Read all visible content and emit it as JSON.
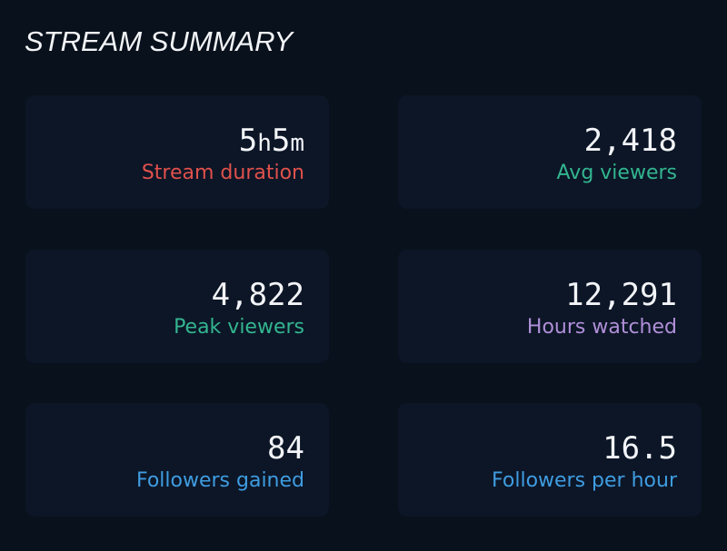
{
  "title": "STREAM SUMMARY",
  "cards": [
    {
      "value_parts": [
        "5",
        "h",
        "5",
        "m"
      ],
      "label": "Stream duration",
      "color": "#e0514c"
    },
    {
      "value": "2,418",
      "label": "Avg viewers",
      "color": "#33b58f"
    },
    {
      "value": "4,822",
      "label": "Peak viewers",
      "color": "#33b58f"
    },
    {
      "value": "12,291",
      "label": "Hours watched",
      "color": "#b08fd8"
    },
    {
      "value": "84",
      "label": "Followers gained",
      "color": "#3f9ce0"
    },
    {
      "value": "16.5",
      "label": "Followers per hour",
      "color": "#3f9ce0"
    }
  ]
}
